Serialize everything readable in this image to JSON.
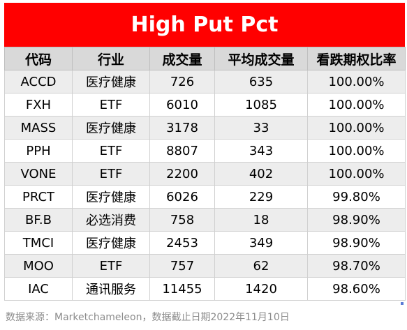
{
  "title": "High Put Pct",
  "headers": [
    "代码",
    "行业",
    "成交量",
    "平均成交量",
    "看跌期权比率"
  ],
  "rows": [
    [
      "ACCD",
      "医疗健康",
      "726",
      "635",
      "100.00%"
    ],
    [
      "FXH",
      "ETF",
      "6010",
      "1085",
      "100.00%"
    ],
    [
      "MASS",
      "医疗健康",
      "3178",
      "33",
      "100.00%"
    ],
    [
      "PPH",
      "ETF",
      "8807",
      "343",
      "100.00%"
    ],
    [
      "VONE",
      "ETF",
      "2200",
      "402",
      "100.00%"
    ],
    [
      "PRCT",
      "医疗健康",
      "6026",
      "229",
      "99.80%"
    ],
    [
      "BF.B",
      "必选消费",
      "758",
      "18",
      "98.90%"
    ],
    [
      "TMCI",
      "医疗健康",
      "2453",
      "349",
      "98.90%"
    ],
    [
      "MOO",
      "ETF",
      "757",
      "62",
      "98.70%"
    ],
    [
      "IAC",
      "通讯服务",
      "11455",
      "1420",
      "98.60%"
    ]
  ],
  "source_note": "数据来源：Marketchameleon，数据截止日期2022年11月10日",
  "colors": {
    "title_bg": "#ff0000",
    "title_text": "#ffffff",
    "header_bg": "#d9d9d9",
    "row_stripe": "#ededed"
  }
}
